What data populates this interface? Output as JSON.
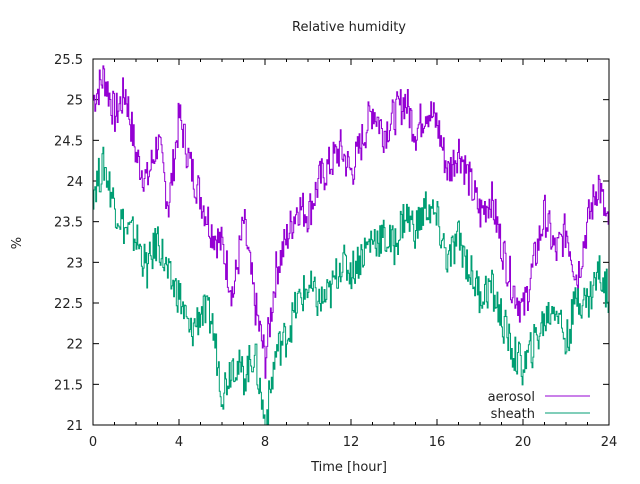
{
  "chart_data": {
    "type": "line",
    "title": "Relative humidity",
    "xlabel": "Time [hour]",
    "ylabel": "%",
    "xlim": [
      0,
      24
    ],
    "ylim": [
      21,
      25.5
    ],
    "xticks": [
      0,
      4,
      8,
      12,
      16,
      20,
      24
    ],
    "xtick_labels": [
      "0",
      "4",
      "8",
      "12",
      "16",
      "20",
      "24"
    ],
    "yticks": [
      21,
      21.5,
      22,
      22.5,
      23,
      23.5,
      24,
      24.5,
      25,
      25.5
    ],
    "ytick_labels": [
      "21",
      "21.5",
      "22",
      "22.5",
      "23",
      "23.5",
      "24",
      "24.5",
      "25",
      "25.5"
    ],
    "grid": false,
    "legend_position": "bottom-right",
    "x": [
      0,
      0.5,
      1,
      1.5,
      2,
      2.5,
      3,
      3.5,
      4,
      4.5,
      5,
      5.5,
      6,
      6.5,
      7,
      7.5,
      8,
      8.5,
      9,
      9.5,
      10,
      10.5,
      11,
      11.5,
      12,
      12.5,
      13,
      13.5,
      14,
      14.5,
      15,
      15.5,
      16,
      16.5,
      17,
      17.5,
      18,
      18.5,
      19,
      19.5,
      20,
      20.5,
      21,
      21.5,
      22,
      22.5,
      23,
      23.5,
      24
    ],
    "series": [
      {
        "name": "aerosol",
        "color": "#9400d3",
        "values": [
          25.0,
          25.3,
          24.8,
          25.1,
          24.3,
          24.0,
          24.5,
          23.7,
          24.8,
          24.2,
          23.8,
          23.4,
          23.2,
          22.6,
          23.5,
          22.5,
          21.8,
          22.9,
          23.3,
          23.7,
          23.6,
          24.0,
          24.2,
          24.4,
          24.1,
          24.5,
          24.9,
          24.6,
          24.8,
          25.0,
          24.6,
          24.9,
          24.7,
          24.1,
          24.4,
          24.0,
          23.6,
          23.8,
          23.2,
          22.7,
          22.4,
          23.0,
          23.6,
          23.1,
          23.4,
          22.8,
          23.5,
          24.0,
          23.3
        ]
      },
      {
        "name": "sheath",
        "color": "#009e73",
        "values": [
          23.9,
          24.2,
          23.7,
          23.4,
          23.3,
          22.9,
          23.3,
          22.8,
          22.6,
          22.1,
          22.4,
          22.3,
          21.4,
          21.8,
          21.6,
          21.9,
          21.0,
          21.9,
          22.1,
          22.5,
          22.7,
          22.5,
          22.6,
          23.0,
          22.9,
          23.1,
          23.3,
          23.3,
          23.2,
          23.6,
          23.4,
          23.7,
          23.5,
          23.0,
          23.3,
          22.9,
          22.6,
          22.7,
          22.3,
          21.9,
          21.7,
          22.0,
          22.3,
          22.5,
          22.0,
          22.6,
          22.5,
          22.9,
          22.6
        ]
      }
    ]
  }
}
